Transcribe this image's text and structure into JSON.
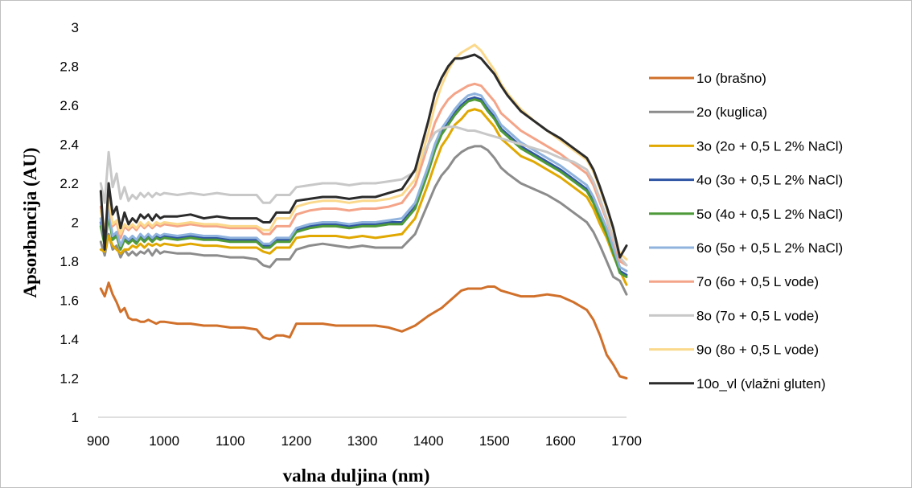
{
  "chart_data": {
    "type": "line",
    "title": "",
    "xlabel": "valna duljina (nm)",
    "ylabel": "Apsorbancija (AU)",
    "xlim": [
      900,
      1700
    ],
    "ylim": [
      1,
      3
    ],
    "xticks": [
      "900",
      "1000",
      "1100",
      "1200",
      "1300",
      "1400",
      "1500",
      "1600",
      "1700"
    ],
    "yticks": [
      "1",
      "1.2",
      "1.4",
      "1.6",
      "1.8",
      "2",
      "2.2",
      "2.4",
      "2.6",
      "2.8",
      "3"
    ],
    "grid": false,
    "legend_position": "right",
    "x": [
      904,
      910,
      916,
      922,
      928,
      934,
      940,
      946,
      952,
      958,
      964,
      970,
      976,
      982,
      988,
      994,
      1000,
      1020,
      1040,
      1060,
      1080,
      1100,
      1120,
      1140,
      1150,
      1160,
      1170,
      1180,
      1190,
      1200,
      1220,
      1240,
      1260,
      1280,
      1300,
      1320,
      1340,
      1360,
      1380,
      1400,
      1410,
      1420,
      1430,
      1440,
      1450,
      1460,
      1470,
      1480,
      1490,
      1500,
      1510,
      1520,
      1540,
      1560,
      1580,
      1600,
      1620,
      1640,
      1650,
      1660,
      1670,
      1680,
      1690,
      1700
    ],
    "series": [
      {
        "name": "1o (brašno)",
        "color": "#d0702a",
        "values": [
          1.66,
          1.62,
          1.69,
          1.63,
          1.59,
          1.54,
          1.56,
          1.51,
          1.5,
          1.5,
          1.49,
          1.49,
          1.5,
          1.49,
          1.48,
          1.49,
          1.49,
          1.48,
          1.48,
          1.47,
          1.47,
          1.46,
          1.46,
          1.45,
          1.41,
          1.4,
          1.42,
          1.42,
          1.41,
          1.48,
          1.48,
          1.48,
          1.47,
          1.47,
          1.47,
          1.47,
          1.46,
          1.44,
          1.47,
          1.52,
          1.54,
          1.56,
          1.59,
          1.62,
          1.65,
          1.66,
          1.66,
          1.66,
          1.67,
          1.67,
          1.65,
          1.64,
          1.62,
          1.62,
          1.63,
          1.62,
          1.59,
          1.55,
          1.5,
          1.42,
          1.32,
          1.27,
          1.21,
          1.2
        ]
      },
      {
        "name": "2o (kuglica)",
        "color": "#8c8c8c",
        "values": [
          1.9,
          1.83,
          1.94,
          1.86,
          1.88,
          1.82,
          1.86,
          1.83,
          1.85,
          1.83,
          1.85,
          1.84,
          1.86,
          1.83,
          1.86,
          1.84,
          1.85,
          1.84,
          1.84,
          1.83,
          1.83,
          1.82,
          1.82,
          1.81,
          1.78,
          1.77,
          1.81,
          1.81,
          1.81,
          1.86,
          1.88,
          1.89,
          1.88,
          1.87,
          1.88,
          1.87,
          1.87,
          1.87,
          1.94,
          2.1,
          2.18,
          2.24,
          2.28,
          2.33,
          2.36,
          2.38,
          2.39,
          2.39,
          2.37,
          2.33,
          2.28,
          2.25,
          2.2,
          2.17,
          2.14,
          2.1,
          2.05,
          2.0,
          1.95,
          1.88,
          1.8,
          1.72,
          1.7,
          1.63
        ]
      },
      {
        "name": "3o (2o + 0,5 L 2% NaCl)",
        "color": "#e0a800",
        "values": [
          1.86,
          1.85,
          1.93,
          1.88,
          1.86,
          1.84,
          1.86,
          1.86,
          1.88,
          1.87,
          1.89,
          1.87,
          1.89,
          1.88,
          1.89,
          1.88,
          1.89,
          1.88,
          1.89,
          1.88,
          1.88,
          1.87,
          1.87,
          1.87,
          1.85,
          1.84,
          1.87,
          1.87,
          1.87,
          1.92,
          1.93,
          1.93,
          1.93,
          1.92,
          1.93,
          1.92,
          1.93,
          1.94,
          2.02,
          2.2,
          2.3,
          2.39,
          2.44,
          2.5,
          2.53,
          2.57,
          2.58,
          2.57,
          2.53,
          2.49,
          2.43,
          2.4,
          2.34,
          2.31,
          2.27,
          2.23,
          2.18,
          2.13,
          2.07,
          1.99,
          1.92,
          1.83,
          1.75,
          1.68
        ]
      },
      {
        "name": "4o (3o + 0,5 L 2% NaCl)",
        "color": "#2f55a4",
        "values": [
          2.0,
          1.89,
          2.05,
          1.92,
          1.94,
          1.87,
          1.92,
          1.9,
          1.92,
          1.9,
          1.93,
          1.91,
          1.93,
          1.91,
          1.93,
          1.92,
          1.93,
          1.92,
          1.93,
          1.92,
          1.92,
          1.91,
          1.91,
          1.91,
          1.88,
          1.88,
          1.91,
          1.91,
          1.91,
          1.96,
          1.98,
          1.99,
          1.99,
          1.98,
          1.99,
          1.99,
          2.0,
          2.0,
          2.08,
          2.27,
          2.38,
          2.46,
          2.51,
          2.56,
          2.6,
          2.63,
          2.64,
          2.63,
          2.58,
          2.54,
          2.48,
          2.45,
          2.39,
          2.35,
          2.31,
          2.27,
          2.22,
          2.17,
          2.11,
          2.03,
          1.95,
          1.85,
          1.75,
          1.73
        ]
      },
      {
        "name": "5o (4o + 0,5 L 2% NaCl)",
        "color": "#4e9a3a",
        "values": [
          1.98,
          1.88,
          2.03,
          1.91,
          1.93,
          1.86,
          1.91,
          1.89,
          1.91,
          1.89,
          1.92,
          1.9,
          1.92,
          1.9,
          1.92,
          1.91,
          1.92,
          1.91,
          1.92,
          1.91,
          1.91,
          1.9,
          1.9,
          1.9,
          1.87,
          1.87,
          1.9,
          1.9,
          1.9,
          1.95,
          1.97,
          1.98,
          1.98,
          1.97,
          1.98,
          1.98,
          1.99,
          1.99,
          2.07,
          2.26,
          2.37,
          2.45,
          2.5,
          2.55,
          2.59,
          2.62,
          2.63,
          2.62,
          2.57,
          2.53,
          2.47,
          2.44,
          2.38,
          2.34,
          2.3,
          2.26,
          2.21,
          2.16,
          2.1,
          2.02,
          1.94,
          1.84,
          1.74,
          1.72
        ]
      },
      {
        "name": "6o (5o + 0,5 L 2% NaCl)",
        "color": "#8fb3dd",
        "values": [
          2.02,
          1.9,
          2.07,
          1.93,
          1.95,
          1.88,
          1.93,
          1.91,
          1.93,
          1.91,
          1.94,
          1.92,
          1.94,
          1.92,
          1.94,
          1.93,
          1.94,
          1.93,
          1.94,
          1.93,
          1.93,
          1.92,
          1.92,
          1.92,
          1.89,
          1.89,
          1.92,
          1.92,
          1.92,
          1.97,
          1.99,
          2.0,
          2.0,
          1.99,
          2.0,
          2.0,
          2.01,
          2.02,
          2.1,
          2.29,
          2.4,
          2.48,
          2.53,
          2.58,
          2.62,
          2.65,
          2.66,
          2.65,
          2.6,
          2.56,
          2.5,
          2.47,
          2.41,
          2.37,
          2.33,
          2.29,
          2.24,
          2.19,
          2.13,
          2.05,
          1.97,
          1.87,
          1.77,
          1.75
        ]
      },
      {
        "name": "7o (6o + 0,5 L vode)",
        "color": "#f4a488",
        "values": [
          2.08,
          1.93,
          2.13,
          1.98,
          2.0,
          1.92,
          1.98,
          1.96,
          1.98,
          1.96,
          1.99,
          1.97,
          1.99,
          1.97,
          1.99,
          1.98,
          1.99,
          1.98,
          1.99,
          1.98,
          1.98,
          1.97,
          1.97,
          1.97,
          1.94,
          1.94,
          1.98,
          1.98,
          1.98,
          2.04,
          2.06,
          2.07,
          2.07,
          2.06,
          2.07,
          2.07,
          2.08,
          2.1,
          2.19,
          2.4,
          2.51,
          2.58,
          2.63,
          2.66,
          2.68,
          2.7,
          2.71,
          2.7,
          2.66,
          2.62,
          2.56,
          2.53,
          2.47,
          2.43,
          2.39,
          2.35,
          2.3,
          2.25,
          2.19,
          2.1,
          2.01,
          1.91,
          1.8,
          1.78
        ]
      },
      {
        "name": "8o (7o + 0,5 L vode)",
        "color": "#c8c8c8",
        "values": [
          2.2,
          2.1,
          2.36,
          2.18,
          2.25,
          2.12,
          2.18,
          2.11,
          2.14,
          2.12,
          2.15,
          2.13,
          2.15,
          2.13,
          2.15,
          2.14,
          2.15,
          2.14,
          2.15,
          2.14,
          2.15,
          2.14,
          2.14,
          2.14,
          2.1,
          2.1,
          2.14,
          2.14,
          2.14,
          2.18,
          2.19,
          2.2,
          2.2,
          2.19,
          2.2,
          2.2,
          2.21,
          2.22,
          2.26,
          2.4,
          2.46,
          2.48,
          2.49,
          2.49,
          2.48,
          2.47,
          2.47,
          2.46,
          2.45,
          2.44,
          2.43,
          2.42,
          2.4,
          2.38,
          2.36,
          2.33,
          2.31,
          2.27,
          2.21,
          2.12,
          2.02,
          1.92,
          1.82,
          1.78
        ]
      },
      {
        "name": "9o (8o + 0,5 L vode)",
        "color": "#fbd98c",
        "values": [
          2.06,
          1.95,
          2.12,
          1.99,
          2.01,
          1.94,
          1.99,
          1.97,
          1.99,
          1.97,
          2.0,
          1.98,
          2.0,
          1.98,
          2.0,
          1.99,
          2.0,
          1.99,
          2.0,
          1.99,
          1.99,
          1.98,
          1.98,
          1.98,
          1.96,
          1.96,
          2.02,
          2.02,
          2.02,
          2.08,
          2.1,
          2.11,
          2.11,
          2.1,
          2.11,
          2.11,
          2.12,
          2.14,
          2.22,
          2.46,
          2.6,
          2.7,
          2.78,
          2.84,
          2.87,
          2.89,
          2.91,
          2.88,
          2.83,
          2.78,
          2.71,
          2.66,
          2.58,
          2.52,
          2.47,
          2.42,
          2.37,
          2.32,
          2.26,
          2.17,
          2.07,
          1.96,
          1.84,
          1.81
        ]
      },
      {
        "name": "10o_vl (vlažni gluten)",
        "color": "#2b2b2b",
        "values": [
          2.16,
          1.86,
          2.2,
          2.04,
          2.08,
          1.97,
          2.05,
          1.99,
          2.02,
          2.0,
          2.04,
          2.02,
          2.04,
          2.01,
          2.04,
          2.02,
          2.03,
          2.03,
          2.04,
          2.02,
          2.03,
          2.02,
          2.02,
          2.02,
          2.0,
          2.0,
          2.05,
          2.05,
          2.05,
          2.11,
          2.12,
          2.13,
          2.13,
          2.12,
          2.13,
          2.13,
          2.15,
          2.17,
          2.27,
          2.52,
          2.66,
          2.74,
          2.8,
          2.84,
          2.84,
          2.85,
          2.86,
          2.84,
          2.8,
          2.76,
          2.7,
          2.65,
          2.57,
          2.52,
          2.47,
          2.43,
          2.38,
          2.33,
          2.27,
          2.18,
          2.08,
          1.97,
          1.82,
          1.88
        ]
      }
    ]
  }
}
